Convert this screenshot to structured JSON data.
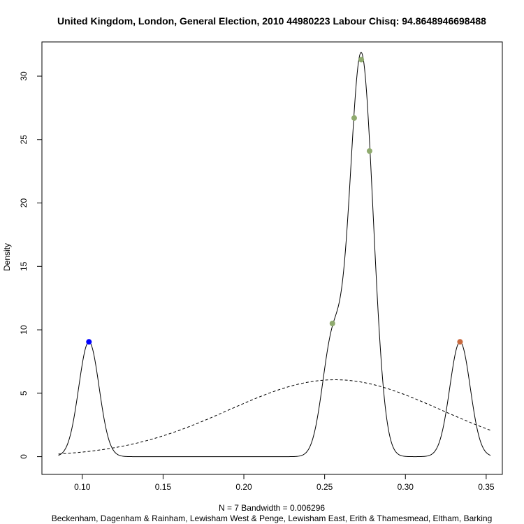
{
  "chart_data": {
    "type": "line",
    "title": "United Kingdom, London, General Election, 2010 44980223 Labour Chisq: 94.8648946698488",
    "xlabel_line1": "N = 7   Bandwidth = 0.006296",
    "xlabel_line2": "Beckenham, Dagenham & Rainham, Lewisham West & Penge, Lewisham East, Erith & Thamesmead, Eltham, Barking",
    "ylabel": "Density",
    "xlim": [
      0.075,
      0.36
    ],
    "ylim": [
      -1.4,
      32.7
    ],
    "x_ticks": [
      0.1,
      0.15,
      0.2,
      0.25,
      0.3,
      0.35
    ],
    "x_tick_labels": [
      "0.10",
      "0.15",
      "0.20",
      "0.25",
      "0.30",
      "0.35"
    ],
    "y_ticks": [
      0,
      5,
      10,
      15,
      20,
      25,
      30
    ],
    "y_tick_labels": [
      "0",
      "5",
      "10",
      "15",
      "20",
      "25",
      "30"
    ],
    "grid": false,
    "kde": {
      "bandwidth": 0.006296,
      "samples": [
        0.1041,
        0.2548,
        0.2683,
        0.2725,
        0.2727,
        0.2778,
        0.3338
      ],
      "x_range": [
        0.0852,
        0.3527
      ],
      "line_style": "solid"
    },
    "normal_reference": {
      "mean": 0.2564,
      "sd": 0.0658,
      "x_range": [
        0.0852,
        0.3527
      ],
      "line_style": "dashed"
    },
    "points": [
      {
        "x": 0.1041,
        "y": 9.05,
        "color": "#0000ff"
      },
      {
        "x": 0.2548,
        "y": 10.5,
        "color": "#8faa6e"
      },
      {
        "x": 0.2683,
        "y": 26.7,
        "color": "#8faa6e"
      },
      {
        "x": 0.2727,
        "y": 31.3,
        "color": "#8faa6e"
      },
      {
        "x": 0.2778,
        "y": 24.1,
        "color": "#8faa6e"
      },
      {
        "x": 0.3338,
        "y": 9.05,
        "color": "#c8693f"
      }
    ]
  }
}
